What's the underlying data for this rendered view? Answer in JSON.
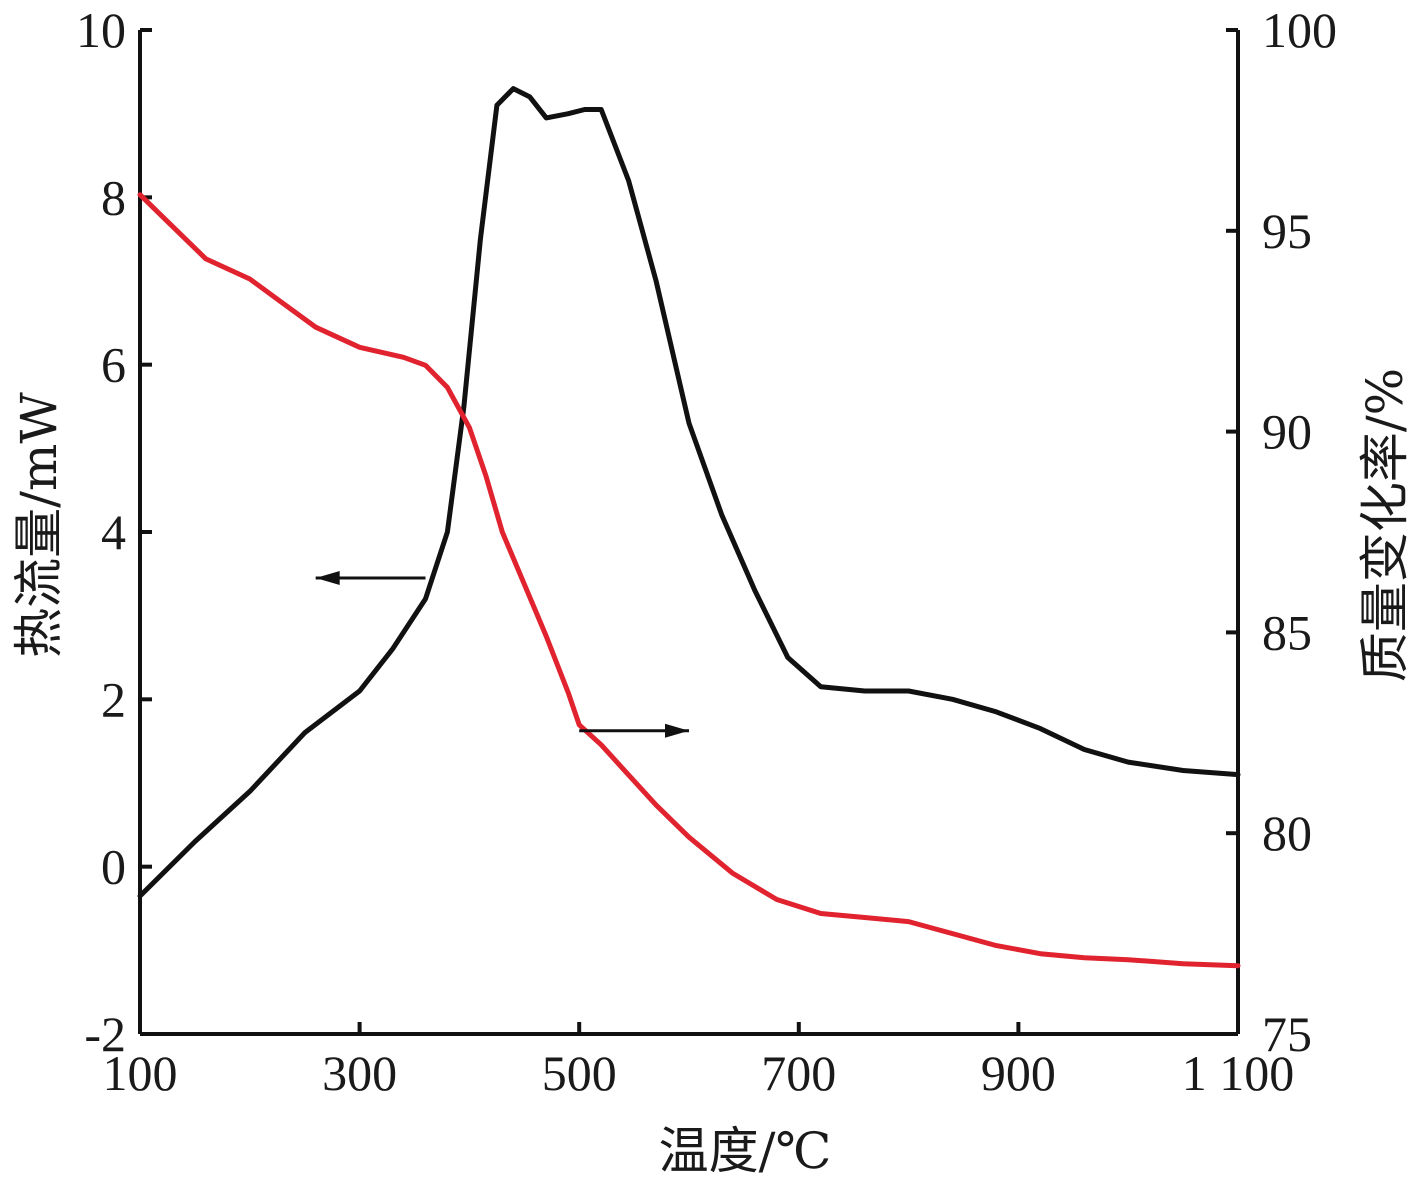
{
  "chart_data": {
    "type": "line",
    "title": "",
    "xlabel": "温度/℃",
    "ylabel_left": "热流量/mW",
    "ylabel_right": "质量变化率/%",
    "xlim": [
      100,
      1100
    ],
    "ylim_left": [
      -2,
      10
    ],
    "ylim_right": [
      75,
      100
    ],
    "x_ticks": [
      100,
      300,
      500,
      700,
      900,
      1100
    ],
    "x_tick_labels": [
      "100",
      "300",
      "500",
      "700",
      "900",
      "1 100"
    ],
    "y_left_ticks": [
      -2,
      0,
      2,
      4,
      6,
      8,
      10
    ],
    "y_left_tick_labels": [
      "-2",
      "0",
      "2",
      "4",
      "6",
      "8",
      "10"
    ],
    "y_right_ticks": [
      75,
      80,
      85,
      90,
      95,
      100
    ],
    "y_right_tick_labels": [
      "75",
      "80",
      "85",
      "90",
      "95",
      "100"
    ],
    "grid": false,
    "series": [
      {
        "id": "heat-flow",
        "axis": "left",
        "color": "#111111",
        "points": [
          [
            100,
            -0.35
          ],
          [
            150,
            0.3
          ],
          [
            200,
            0.9
          ],
          [
            250,
            1.6
          ],
          [
            300,
            2.1
          ],
          [
            330,
            2.6
          ],
          [
            360,
            3.2
          ],
          [
            380,
            4.0
          ],
          [
            395,
            5.5
          ],
          [
            410,
            7.5
          ],
          [
            425,
            9.1
          ],
          [
            440,
            9.3
          ],
          [
            455,
            9.2
          ],
          [
            470,
            8.95
          ],
          [
            490,
            9.0
          ],
          [
            505,
            9.05
          ],
          [
            520,
            9.05
          ],
          [
            545,
            8.2
          ],
          [
            570,
            7.0
          ],
          [
            600,
            5.3
          ],
          [
            630,
            4.2
          ],
          [
            660,
            3.3
          ],
          [
            690,
            2.5
          ],
          [
            720,
            2.15
          ],
          [
            760,
            2.1
          ],
          [
            800,
            2.1
          ],
          [
            840,
            2.0
          ],
          [
            880,
            1.85
          ],
          [
            920,
            1.65
          ],
          [
            960,
            1.4
          ],
          [
            1000,
            1.25
          ],
          [
            1050,
            1.15
          ],
          [
            1100,
            1.1
          ]
        ]
      },
      {
        "id": "mass-change",
        "axis": "right",
        "color": "#e0232e",
        "points": [
          [
            100,
            95.9
          ],
          [
            130,
            95.1
          ],
          [
            160,
            94.3
          ],
          [
            200,
            93.8
          ],
          [
            230,
            93.2
          ],
          [
            260,
            92.6
          ],
          [
            300,
            92.1
          ],
          [
            340,
            91.85
          ],
          [
            360,
            91.65
          ],
          [
            380,
            91.1
          ],
          [
            400,
            90.1
          ],
          [
            415,
            88.9
          ],
          [
            430,
            87.5
          ],
          [
            450,
            86.2
          ],
          [
            470,
            84.9
          ],
          [
            490,
            83.5
          ],
          [
            500,
            82.7
          ],
          [
            520,
            82.2
          ],
          [
            540,
            81.6
          ],
          [
            570,
            80.7
          ],
          [
            600,
            79.9
          ],
          [
            640,
            79.0
          ],
          [
            680,
            78.35
          ],
          [
            720,
            78.0
          ],
          [
            760,
            77.9
          ],
          [
            800,
            77.8
          ],
          [
            840,
            77.5
          ],
          [
            880,
            77.2
          ],
          [
            920,
            77.0
          ],
          [
            960,
            76.9
          ],
          [
            1000,
            76.85
          ],
          [
            1050,
            76.75
          ],
          [
            1100,
            76.7
          ]
        ]
      }
    ],
    "annotations": [
      {
        "type": "arrow",
        "direction": "left",
        "indicates": "left axis",
        "series": "heat-flow",
        "x_from": 360,
        "x_to": 260,
        "y": 3.45,
        "axis": "left"
      },
      {
        "type": "arrow",
        "direction": "right",
        "indicates": "right axis",
        "series": "mass-change",
        "x_from": 500,
        "x_to": 600,
        "y": 82.55,
        "axis": "right"
      }
    ]
  }
}
